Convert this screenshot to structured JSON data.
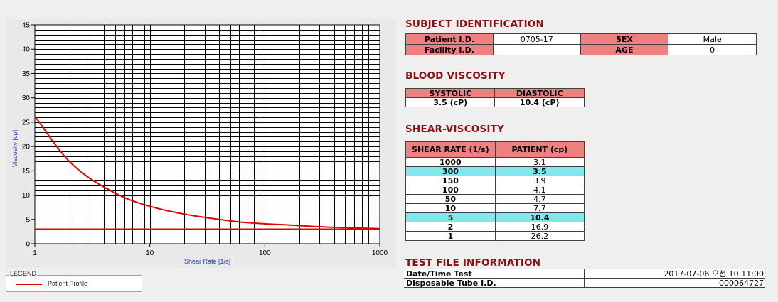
{
  "chart_data": {
    "type": "line",
    "xlabel": "Shear Rate [1/s]",
    "ylabel": "Viscosity [cp]",
    "x_scale": "log",
    "xlim": [
      1,
      1000
    ],
    "ylim": [
      0,
      45
    ],
    "x_ticks": [
      "1",
      "10",
      "100",
      "1000"
    ],
    "y_ticks": [
      "0",
      "5",
      "10",
      "15",
      "20",
      "25",
      "30",
      "35",
      "40",
      "45"
    ],
    "grid": true,
    "series": [
      {
        "name": "Patient Profile",
        "color": "#e00000",
        "x": [
          1,
          2,
          5,
          10,
          50,
          100,
          150,
          300,
          1000
        ],
        "y": [
          26.2,
          16.9,
          10.4,
          7.7,
          4.7,
          4.1,
          3.9,
          3.5,
          3.1
        ]
      }
    ],
    "reference_line": {
      "color": "#e00000",
      "y": 3.0
    }
  },
  "legend": {
    "title": "LEGEND",
    "label": "Patient Profile"
  },
  "subject": {
    "title": "SUBJECT IDENTIFICATION",
    "patient_id_label": "Patient I.D.",
    "patient_id": "0705-17",
    "facility_id_label": "Facility I.D.",
    "facility_id": "",
    "sex_label": "SEX",
    "sex": "Male",
    "age_label": "AGE",
    "age": "0"
  },
  "blood": {
    "title": "BLOOD VISCOSITY",
    "systolic_label": "SYSTOLIC",
    "diastolic_label": "DIASTOLIC",
    "systolic": "3.5 (cP)",
    "diastolic": "10.4 (cP)"
  },
  "shear": {
    "title": "SHEAR-VISCOSITY",
    "col_rate": "SHEAR RATE (1/s)",
    "col_patient": "PATIENT (cp)",
    "rows": [
      {
        "rate": "1000",
        "value": "3.1"
      },
      {
        "rate": "300",
        "value": "3.5"
      },
      {
        "rate": "150",
        "value": "3.9"
      },
      {
        "rate": "100",
        "value": "4.1"
      },
      {
        "rate": "50",
        "value": "4.7"
      },
      {
        "rate": "10",
        "value": "7.7"
      },
      {
        "rate": "5",
        "value": "10.4"
      },
      {
        "rate": "2",
        "value": "16.9"
      },
      {
        "rate": "1",
        "value": "26.2"
      }
    ]
  },
  "testfile": {
    "title": "TEST FILE INFORMATION",
    "date_label": "Date/Time Test",
    "date_value": "2017-07-06  오전 10:11:00",
    "tube_label": "Disposable Tube I.D.",
    "tube_value": "000064727"
  }
}
